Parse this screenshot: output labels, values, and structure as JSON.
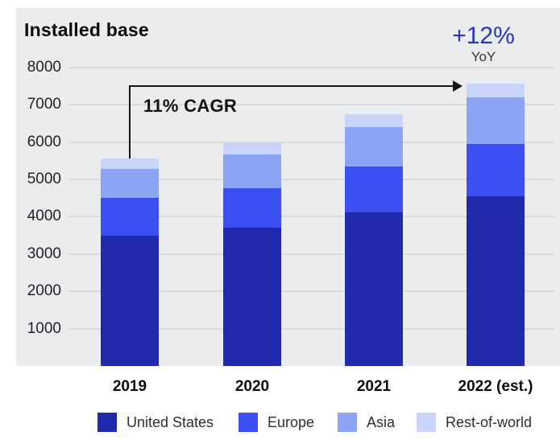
{
  "title": "Installed base",
  "chart_data": {
    "type": "bar",
    "stacked": true,
    "title": "Installed base",
    "categories": [
      "2019",
      "2020",
      "2021",
      "2022 (est.)"
    ],
    "series": [
      {
        "name": "United States",
        "color": "#2129ad",
        "values": [
          3500,
          3700,
          4120,
          4540
        ]
      },
      {
        "name": "Europe",
        "color": "#3b4ef1",
        "values": [
          1000,
          1060,
          1220,
          1410
        ]
      },
      {
        "name": "Asia",
        "color": "#8ca4f4",
        "values": [
          780,
          900,
          1060,
          1250
        ]
      },
      {
        "name": "Rest-of-world",
        "color": "#c8d4fa",
        "values": [
          280,
          320,
          340,
          360
        ]
      }
    ],
    "ylim": [
      0,
      8000
    ],
    "yticks": [
      1000,
      2000,
      3000,
      4000,
      5000,
      6000,
      7000,
      8000
    ],
    "grid": true,
    "legend_position": "bottom",
    "annotations": {
      "cagr": {
        "text": "11% CAGR"
      },
      "yoy": {
        "value": "+12%",
        "label": "YoY"
      }
    }
  },
  "colors": {
    "panel_bg": "#ebecee",
    "gridline": "#d9dade",
    "accent_blue": "#2435c9",
    "text_dark": "#0c0c0e",
    "arrow": "#151517"
  }
}
